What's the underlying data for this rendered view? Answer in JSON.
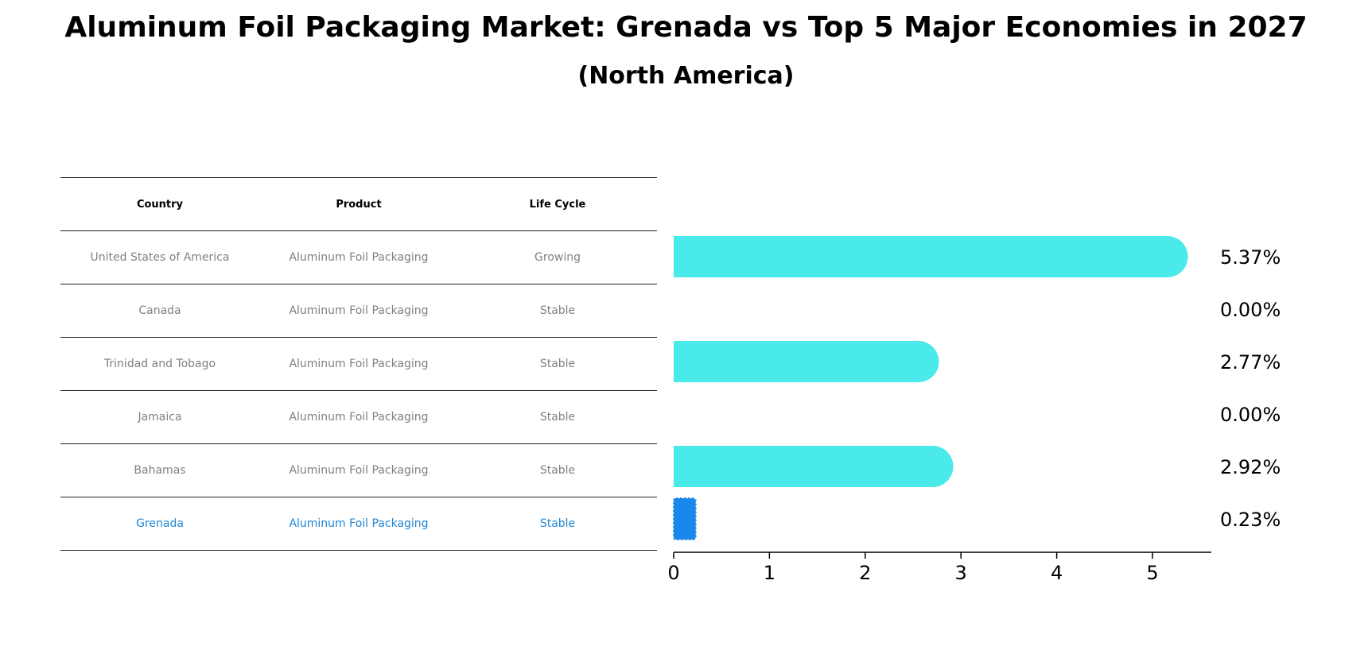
{
  "title": "Aluminum Foil Packaging Market: Grenada vs Top 5 Major Economies in 2027",
  "subtitle": "(North America)",
  "table": {
    "headers": [
      "Country",
      "Product",
      "Life Cycle"
    ],
    "rows": [
      [
        "United States of America",
        "Aluminum Foil Packaging",
        "Growing"
      ],
      [
        "Canada",
        "Aluminum Foil Packaging",
        "Stable"
      ],
      [
        "Trinidad and Tobago",
        "Aluminum Foil Packaging",
        "Stable"
      ],
      [
        "Jamaica",
        "Aluminum Foil Packaging",
        "Stable"
      ],
      [
        "Bahamas",
        "Aluminum Foil Packaging",
        "Stable"
      ],
      [
        "Grenada",
        "Aluminum Foil Packaging",
        "Stable"
      ]
    ]
  },
  "chart_data": {
    "type": "bar",
    "orientation": "horizontal",
    "categories": [
      "United States of America",
      "Canada",
      "Trinidad and Tobago",
      "Jamaica",
      "Bahamas",
      "Grenada"
    ],
    "values": [
      5.37,
      0.0,
      2.77,
      0.0,
      2.92,
      0.23
    ],
    "value_labels": [
      "5.37%",
      "0.00%",
      "2.77%",
      "0.00%",
      "2.92%",
      "0.23%"
    ],
    "xlim": [
      0,
      5.64
    ],
    "xticks": [
      "0",
      "1",
      "2",
      "3",
      "4",
      "5"
    ],
    "highlight": "Grenada",
    "colors": {
      "bar": "#4aeaea",
      "highlight": "#1a87ec",
      "axis": "#000000"
    }
  }
}
